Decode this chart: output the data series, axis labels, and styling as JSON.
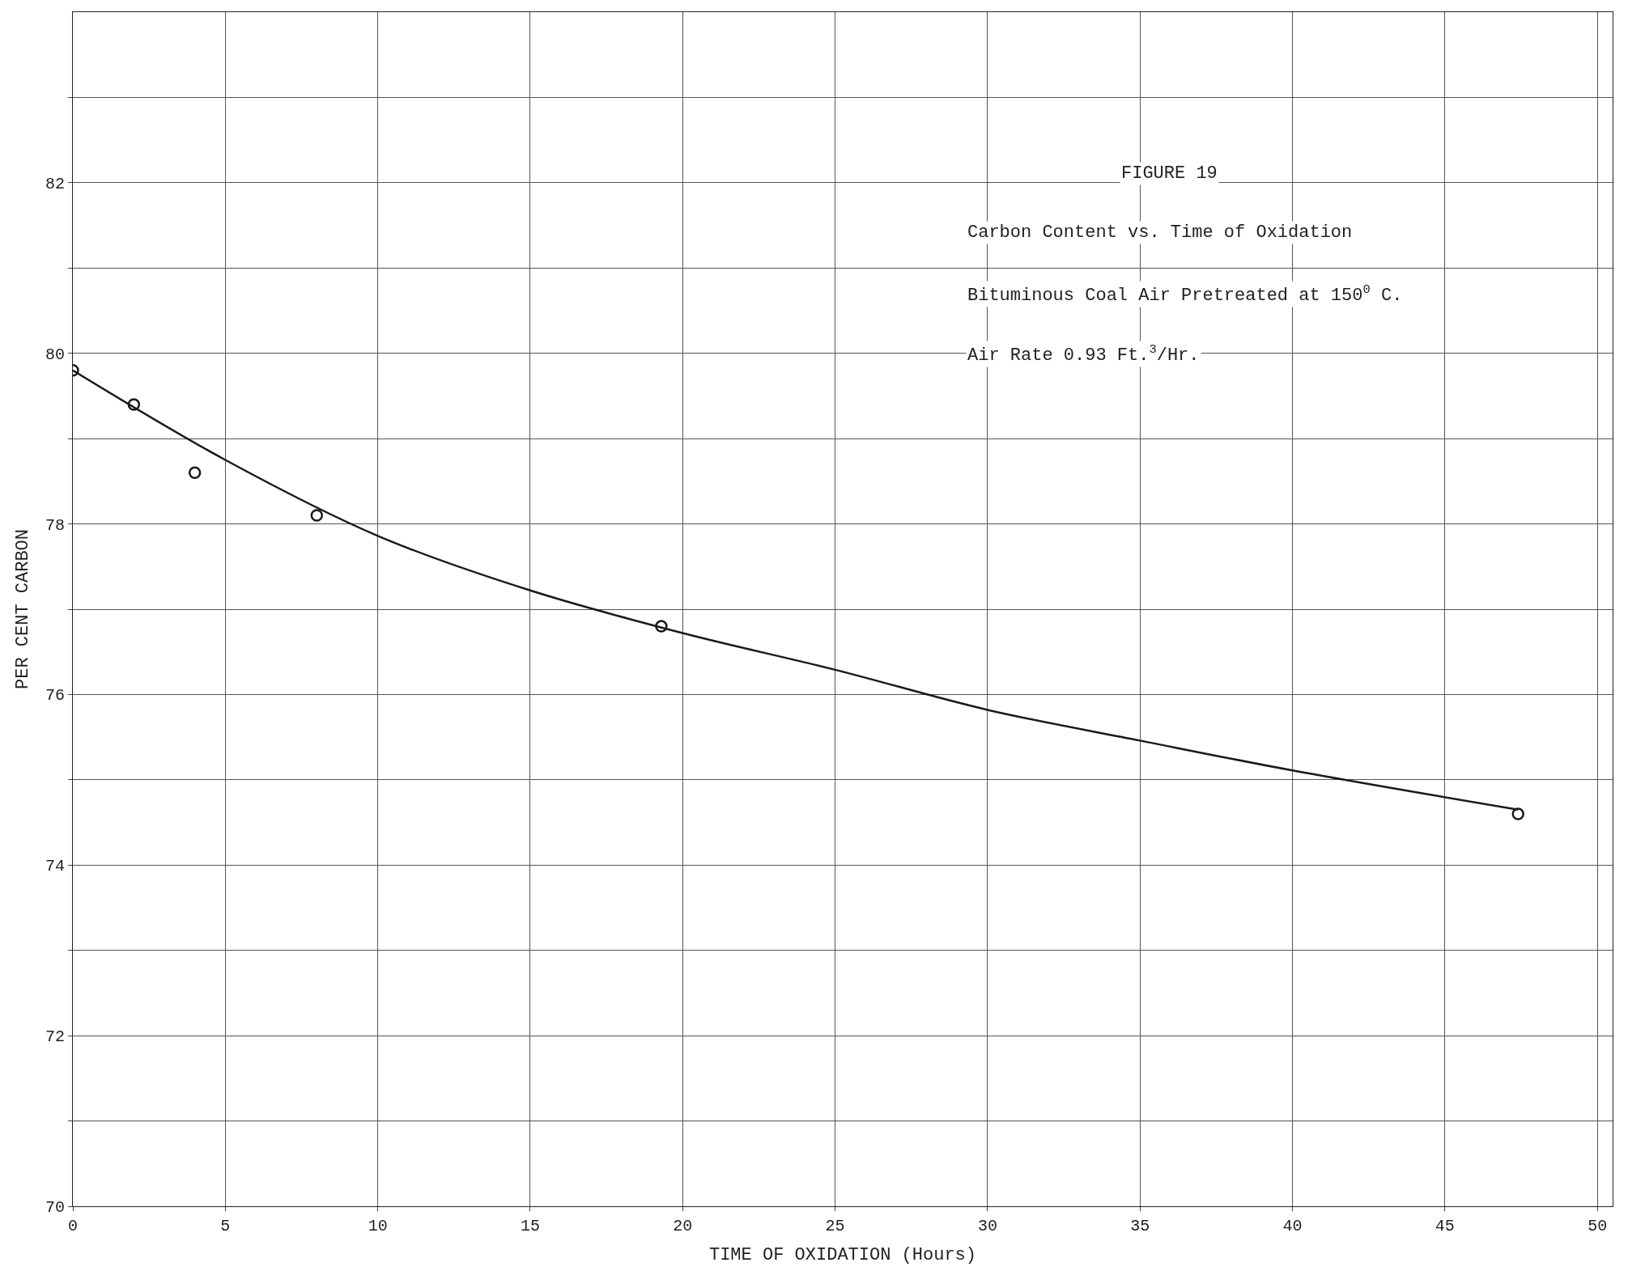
{
  "chart_data": {
    "type": "scatter",
    "xlabel": "TIME OF OXIDATION (Hours)",
    "ylabel": "PER CENT CARBON",
    "annotations": [
      "FIGURE 19",
      "Carbon Content vs. Time of Oxidation",
      "Bituminous Coal Air Pretreated at 150$^{0}$ C.",
      "Air Rate 0.93 Ft.$^{3}$/Hr."
    ],
    "series": [
      {
        "color": "#1a1a1a",
        "marker": "circle",
        "x": [
          0,
          2.0,
          4.0,
          8.0,
          19.3,
          47.4
        ],
        "values": [
          79.8,
          79.4,
          78.6,
          78.1,
          76.8,
          74.6
        ]
      },
      {
        "type": "line",
        "color": "#1a1a1a",
        "line_style": "solid",
        "x": [
          0,
          5,
          10,
          15,
          20,
          25,
          30,
          35,
          40,
          47.4
        ],
        "values": [
          79.8,
          78.75,
          77.86,
          77.22,
          76.72,
          76.29,
          75.82,
          75.46,
          75.11,
          74.65
        ]
      }
    ],
    "xlim": [
      0,
      50.5
    ],
    "ylim": [
      70,
      84
    ],
    "xticks": [
      0,
      5,
      10,
      15,
      20,
      25,
      30,
      35,
      40,
      45,
      50
    ],
    "yticks": [
      70,
      {
        "value": 71,
        "label": null
      },
      72,
      {
        "value": 73,
        "label": null
      },
      74,
      {
        "value": 75,
        "label": null
      },
      76,
      {
        "value": 77,
        "label": null
      },
      78,
      {
        "value": 79,
        "label": null
      },
      80,
      {
        "value": 81,
        "label": null
      },
      82,
      {
        "value": 83,
        "label": null
      }
    ],
    "grid": true
  }
}
